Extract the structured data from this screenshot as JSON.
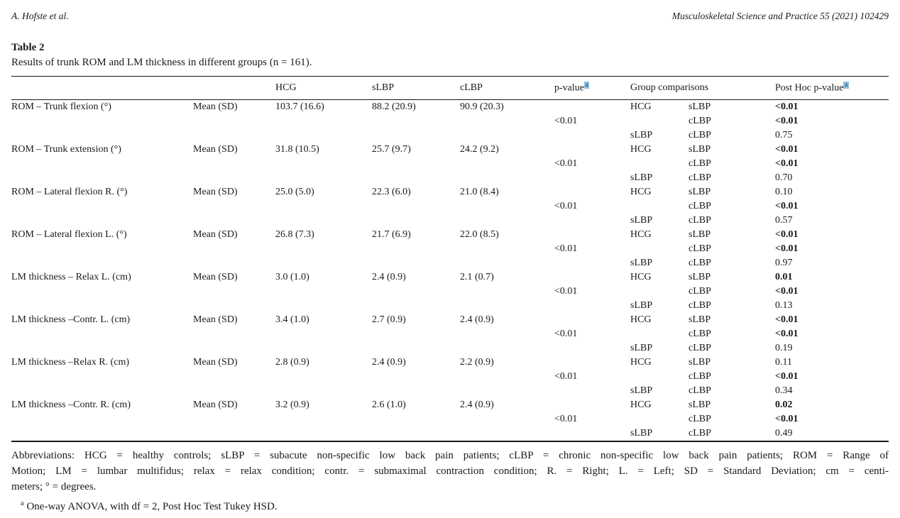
{
  "running_head": {
    "authors": "A. Hofste et al.",
    "journal": "Musculoskeletal Science and Practice 55 (2021) 102429"
  },
  "table": {
    "label": "Table 2",
    "caption": "Results of trunk ROM and LM thickness in different groups (n = 161).",
    "columns": {
      "hcg": "HCG",
      "slbp": "sLBP",
      "clbp": "cLBP",
      "pvalue": "p-value",
      "pvalue_sup": "a",
      "comparisons": "Group comparisons",
      "posthoc": "Post Hoc p-value",
      "posthoc_sup": "a"
    },
    "rows": [
      {
        "label": "ROM – Trunk flexion (°)",
        "stat": "Mean (SD)",
        "hcg": "103.7 (16.6)",
        "slbp": "88.2 (20.9)",
        "clbp": "90.9 (20.3)",
        "pvalue": "<0.01",
        "comparisons": [
          {
            "g1": "HCG",
            "g2": "sLBP",
            "p": "<0.01",
            "bold": true
          },
          {
            "g1": "",
            "g2": "cLBP",
            "p": "<0.01",
            "bold": true
          },
          {
            "g1": "sLBP",
            "g2": "cLBP",
            "p": "0.75",
            "bold": false
          }
        ]
      },
      {
        "label": "ROM – Trunk extension (°)",
        "stat": "Mean (SD)",
        "hcg": "31.8 (10.5)",
        "slbp": "25.7 (9.7)",
        "clbp": "24.2 (9.2)",
        "pvalue": "<0.01",
        "comparisons": [
          {
            "g1": "HCG",
            "g2": "sLBP",
            "p": "<0.01",
            "bold": true
          },
          {
            "g1": "",
            "g2": "cLBP",
            "p": "<0.01",
            "bold": true
          },
          {
            "g1": "sLBP",
            "g2": "cLBP",
            "p": "0.70",
            "bold": false
          }
        ]
      },
      {
        "label": "ROM – Lateral flexion R. (°)",
        "stat": "Mean (SD)",
        "hcg": "25.0 (5.0)",
        "slbp": "22.3 (6.0)",
        "clbp": "21.0 (8.4)",
        "pvalue": "<0.01",
        "comparisons": [
          {
            "g1": "HCG",
            "g2": "sLBP",
            "p": "0.10",
            "bold": false
          },
          {
            "g1": "",
            "g2": "cLBP",
            "p": "<0.01",
            "bold": true
          },
          {
            "g1": "sLBP",
            "g2": "cLBP",
            "p": "0.57",
            "bold": false
          }
        ]
      },
      {
        "label": "ROM – Lateral flexion L. (°)",
        "stat": "Mean (SD)",
        "hcg": "26.8 (7.3)",
        "slbp": "21.7 (6.9)",
        "clbp": "22.0 (8.5)",
        "pvalue": "<0.01",
        "comparisons": [
          {
            "g1": "HCG",
            "g2": "sLBP",
            "p": "<0.01",
            "bold": true
          },
          {
            "g1": "",
            "g2": "cLBP",
            "p": "<0.01",
            "bold": true
          },
          {
            "g1": "sLBP",
            "g2": "cLBP",
            "p": "0.97",
            "bold": false
          }
        ]
      },
      {
        "label": "LM thickness – Relax L. (cm)",
        "stat": "Mean (SD)",
        "hcg": "3.0 (1.0)",
        "slbp": "2.4 (0.9)",
        "clbp": "2.1 (0.7)",
        "pvalue": "<0.01",
        "comparisons": [
          {
            "g1": "HCG",
            "g2": "sLBP",
            "p": "0.01",
            "bold": true
          },
          {
            "g1": "",
            "g2": "cLBP",
            "p": "<0.01",
            "bold": true
          },
          {
            "g1": "sLBP",
            "g2": "cLBP",
            "p": "0.13",
            "bold": false
          }
        ]
      },
      {
        "label": "LM thickness –Contr. L. (cm)",
        "stat": "Mean (SD)",
        "hcg": "3.4 (1.0)",
        "slbp": "2.7 (0.9)",
        "clbp": "2.4 (0.9)",
        "pvalue": "<0.01",
        "comparisons": [
          {
            "g1": "HCG",
            "g2": "sLBP",
            "p": "<0.01",
            "bold": true
          },
          {
            "g1": "",
            "g2": "cLBP",
            "p": "<0.01",
            "bold": true
          },
          {
            "g1": "sLBP",
            "g2": "cLBP",
            "p": "0.19",
            "bold": false
          }
        ]
      },
      {
        "label": "LM thickness –Relax R. (cm)",
        "stat": "Mean (SD)",
        "hcg": "2.8 (0.9)",
        "slbp": "2.4 (0.9)",
        "clbp": "2.2 (0.9)",
        "pvalue": "<0.01",
        "comparisons": [
          {
            "g1": "HCG",
            "g2": "sLBP",
            "p": "0.11",
            "bold": false
          },
          {
            "g1": "",
            "g2": "cLBP",
            "p": "<0.01",
            "bold": true
          },
          {
            "g1": "sLBP",
            "g2": "cLBP",
            "p": "0.34",
            "bold": false
          }
        ]
      },
      {
        "label": "LM thickness –Contr. R. (cm)",
        "stat": "Mean (SD)",
        "hcg": "3.2 (0.9)",
        "slbp": "2.6 (1.0)",
        "clbp": "2.4 (0.9)",
        "pvalue": "<0.01",
        "comparisons": [
          {
            "g1": "HCG",
            "g2": "sLBP",
            "p": "0.02",
            "bold": true
          },
          {
            "g1": "",
            "g2": "cLBP",
            "p": "<0.01",
            "bold": true
          },
          {
            "g1": "sLBP",
            "g2": "cLBP",
            "p": "0.49",
            "bold": false
          }
        ]
      }
    ]
  },
  "footer": {
    "abbrev_lines": [
      "Abbreviations: HCG = healthy controls; sLBP = subacute non-specific low back pain patients; cLBP = chronic non-specific low back pain patients; ROM = Range of",
      "Motion; LM = lumbar multifidus; relax = relax condition; contr. = submaximal contraction condition; R. = Right; L. = Left; SD = Standard Deviation; cm = centi-",
      "meters; ° = degrees."
    ],
    "footnote_marker": "a",
    "footnote": "One-way ANOVA, with df = 2, Post Hoc Test Tukey HSD."
  }
}
